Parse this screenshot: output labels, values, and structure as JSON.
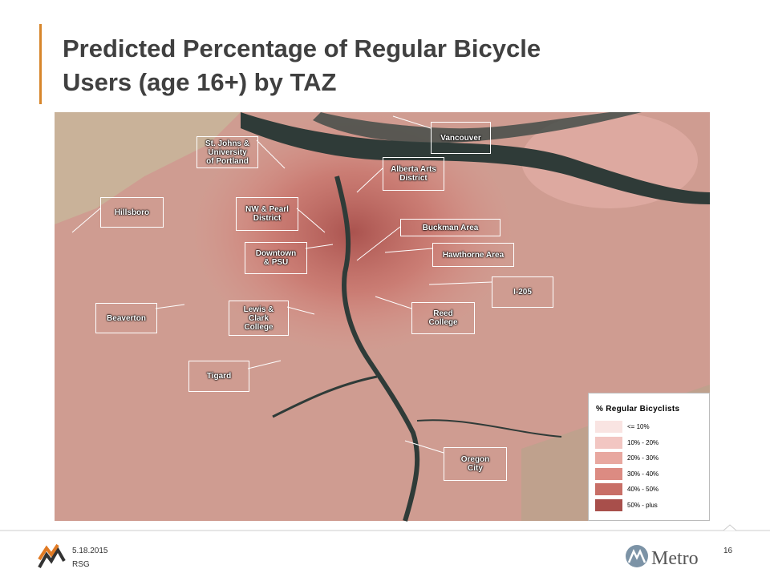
{
  "title": [
    "Predicted Percentage of Regular Bicycle",
    "Users (age 16+) by TAZ"
  ],
  "map": {
    "labels": [
      {
        "lines": [
          "Vancouver"
        ]
      },
      {
        "lines": [
          "St. Johns &",
          "University",
          "of Portland"
        ]
      },
      {
        "lines": [
          "Alberta Arts",
          "District"
        ]
      },
      {
        "lines": [
          "Hillsboro"
        ]
      },
      {
        "lines": [
          "NW & Pearl",
          "District"
        ]
      },
      {
        "lines": [
          "Buckman Area"
        ]
      },
      {
        "lines": [
          "Downtown",
          "& PSU"
        ]
      },
      {
        "lines": [
          "Hawthorne Area"
        ]
      },
      {
        "lines": [
          "I-205"
        ]
      },
      {
        "lines": [
          "Beaverton"
        ]
      },
      {
        "lines": [
          "Lewis &",
          "Clark",
          "College"
        ]
      },
      {
        "lines": [
          "Reed",
          "College"
        ]
      },
      {
        "lines": [
          "Tigard"
        ]
      },
      {
        "lines": [
          "Oregon",
          "City"
        ]
      }
    ]
  },
  "legend": {
    "title": "% Regular Bicyclists",
    "items": [
      {
        "label": "<= 10%",
        "color": "#f9e4e2"
      },
      {
        "label": "10% - 20%",
        "color": "#f2c6c2"
      },
      {
        "label": "20% - 30%",
        "color": "#e8a8a0"
      },
      {
        "label": "30% - 40%",
        "color": "#dc8b82"
      },
      {
        "label": "40% - 50%",
        "color": "#c86f67"
      },
      {
        "label": "50% - plus",
        "color": "#a84f4b"
      }
    ]
  },
  "footer": {
    "date": "5.18.2015",
    "org": "RSG",
    "page": "16",
    "logo": "Metro"
  }
}
